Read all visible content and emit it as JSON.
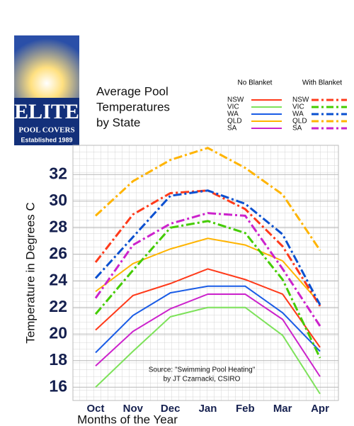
{
  "logo": {
    "name": "ELITE",
    "line2": "POOL COVERS",
    "line3": "Established 1989"
  },
  "chart_data": {
    "type": "line",
    "title": [
      "Average Pool",
      "Temperatures",
      "by State"
    ],
    "legend_titles": [
      "No Blanket",
      "With Blanket"
    ],
    "x_label": "Months of the Year",
    "y_label": "Temperature in Degrees C",
    "annotation": [
      "Source: \"Swimming Pool Heating\"",
      "by JT Czarnacki, CSIRO"
    ],
    "categories": [
      "Oct",
      "Nov",
      "Dec",
      "Jan",
      "Feb",
      "Mar",
      "Apr"
    ],
    "ylim": [
      15,
      34.2
    ],
    "yticks": [
      16,
      18,
      20,
      22,
      24,
      26,
      28,
      30,
      32
    ],
    "grid": true,
    "series": [
      {
        "name": "NSW",
        "color": "#ff3a1a",
        "dashed": false,
        "values": [
          20.3,
          22.9,
          23.8,
          24.9,
          24.1,
          23.0,
          19.0
        ]
      },
      {
        "name": "VIC",
        "color": "#7de25a",
        "dashed": false,
        "values": [
          16.0,
          18.7,
          21.3,
          22.0,
          22.0,
          19.9,
          15.5
        ]
      },
      {
        "name": "WA",
        "color": "#1a5ce6",
        "dashed": false,
        "values": [
          18.6,
          21.4,
          23.1,
          23.6,
          23.6,
          21.6,
          18.7
        ]
      },
      {
        "name": "QLD",
        "color": "#ffb400",
        "dashed": false,
        "values": [
          23.2,
          25.3,
          26.4,
          27.2,
          26.7,
          25.5,
          22.3
        ]
      },
      {
        "name": "SA",
        "color": "#cc22cc",
        "dashed": false,
        "values": [
          17.6,
          20.2,
          21.9,
          23.0,
          23.0,
          21.1,
          16.8
        ]
      },
      {
        "name": "NSW",
        "color": "#ff3a1a",
        "dashed": true,
        "values": [
          25.4,
          29.0,
          30.6,
          30.8,
          29.4,
          26.6,
          22.1
        ]
      },
      {
        "name": "VIC",
        "color": "#44cc00",
        "dashed": true,
        "values": [
          21.5,
          24.8,
          28.0,
          28.5,
          27.6,
          24.1,
          18.2
        ]
      },
      {
        "name": "WA",
        "color": "#0a50d0",
        "dashed": true,
        "values": [
          24.2,
          27.3,
          30.4,
          30.8,
          29.8,
          27.5,
          22.2
        ]
      },
      {
        "name": "QLD",
        "color": "#ffb400",
        "dashed": true,
        "values": [
          28.9,
          31.5,
          33.1,
          34.0,
          32.5,
          30.5,
          26.3
        ]
      },
      {
        "name": "SA",
        "color": "#cc22cc",
        "dashed": true,
        "values": [
          22.7,
          26.7,
          28.3,
          29.1,
          28.9,
          24.9,
          20.6
        ]
      }
    ]
  }
}
